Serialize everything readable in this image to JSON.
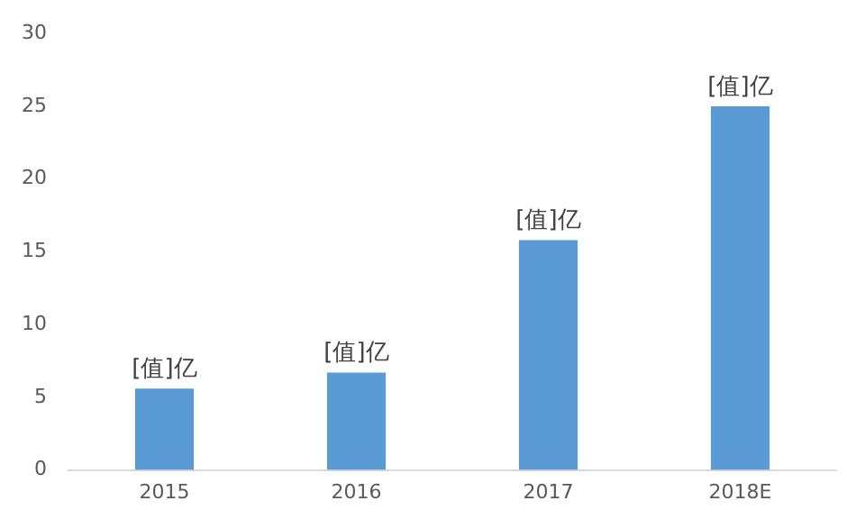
{
  "chart_data": {
    "type": "bar",
    "categories": [
      "2015",
      "2016",
      "2017",
      "2018E"
    ],
    "values": [
      5.6,
      6.7,
      15.8,
      25
    ],
    "color": "#5b9bd5",
    "value_labels": [
      "[值]亿",
      "[值]亿",
      "[值]亿",
      "[值]亿"
    ],
    "ylim": [
      0,
      30
    ],
    "yticks": [
      0,
      5,
      10,
      15,
      20,
      25,
      30
    ],
    "grid": false,
    "legend": false
  }
}
